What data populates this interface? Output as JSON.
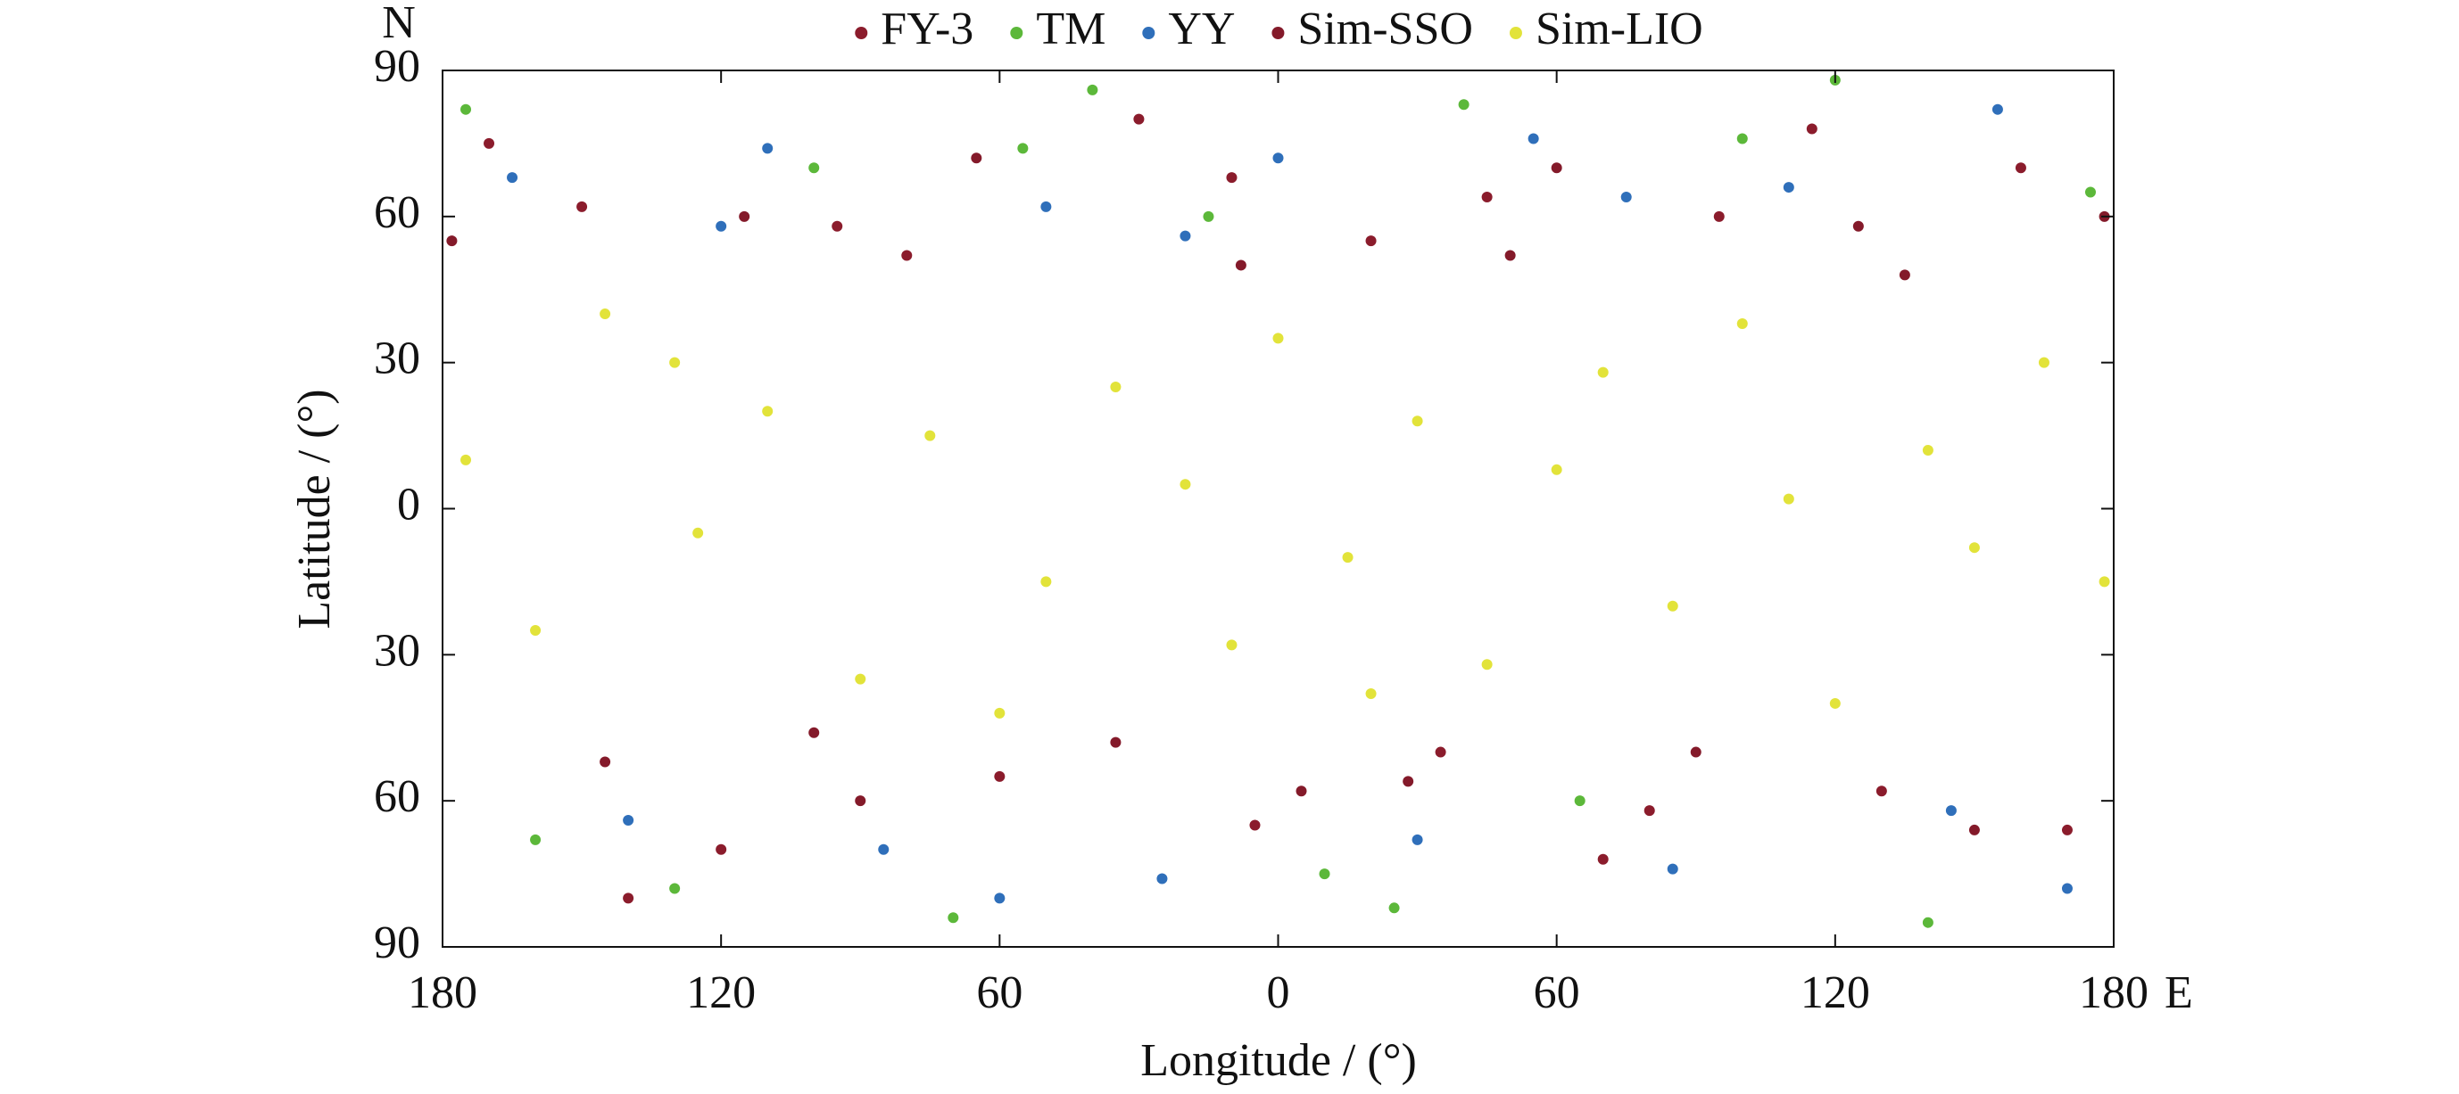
{
  "chart_data": {
    "type": "scatter",
    "xlabel": "Longitude / (°)",
    "ylabel": "Latitude / (°)",
    "annotations": [
      "N",
      "E"
    ],
    "xlim": [
      -180,
      180
    ],
    "xticks": [
      {
        "value": -180,
        "label": "180"
      },
      {
        "value": -120,
        "label": "120"
      },
      {
        "value": -60,
        "label": "60"
      },
      0,
      60,
      120,
      180
    ],
    "ylim": [
      -90,
      90
    ],
    "yticks": [
      {
        "value": -90,
        "label": "90"
      },
      {
        "value": -60,
        "label": "60"
      },
      {
        "value": -30,
        "label": "30"
      },
      0,
      30,
      60,
      90
    ],
    "legend": "top",
    "series": [
      {
        "name": "FY-3",
        "color": "#8b1c2c",
        "x": [
          -170,
          -150,
          -120,
          -95,
          -60,
          -30,
          -5,
          20,
          45,
          70,
          95,
          130,
          160,
          -140,
          -80,
          -10,
          35,
          80,
          115,
          170
        ],
        "values": [
          75,
          62,
          -70,
          58,
          -55,
          80,
          -65,
          55,
          64,
          -72,
          60,
          -58,
          70,
          -80,
          52,
          68,
          -50,
          -62,
          78,
          -66
        ]
      },
      {
        "name": "TM",
        "color": "#5cb83a",
        "x": [
          -175,
          -130,
          -100,
          -70,
          -40,
          -15,
          10,
          40,
          65,
          100,
          140,
          175,
          -160,
          -55,
          25,
          120
        ],
        "values": [
          82,
          -78,
          70,
          -84,
          86,
          60,
          -75,
          83,
          -60,
          76,
          -85,
          65,
          -68,
          74,
          -82,
          88
        ]
      },
      {
        "name": "YY",
        "color": "#2f6fba",
        "x": [
          -165,
          -140,
          -110,
          -85,
          -50,
          -25,
          0,
          30,
          55,
          85,
          110,
          145,
          170,
          -120,
          -20,
          75,
          155,
          -60
        ],
        "values": [
          68,
          -64,
          74,
          -70,
          62,
          -76,
          72,
          -68,
          76,
          -74,
          66,
          -62,
          -78,
          58,
          56,
          64,
          82,
          -80
        ]
      },
      {
        "name": "Sim-SSO",
        "color": "#841a2a",
        "x": [
          -178,
          -145,
          -115,
          -90,
          -65,
          -35,
          -8,
          28,
          50,
          90,
          125,
          150,
          178,
          -100,
          5,
          60,
          135
        ],
        "values": [
          55,
          -52,
          60,
          -60,
          72,
          -48,
          50,
          -56,
          52,
          -50,
          58,
          -66,
          60,
          -46,
          -58,
          70,
          48
        ]
      },
      {
        "name": "Sim-LIO",
        "color": "#e2e33a",
        "x": [
          -175,
          -160,
          -130,
          -125,
          -110,
          -90,
          -75,
          -50,
          -35,
          -20,
          -10,
          0,
          15,
          30,
          45,
          60,
          70,
          85,
          100,
          120,
          140,
          150,
          165,
          178,
          -145,
          -60,
          20,
          110
        ],
        "values": [
          10,
          -25,
          30,
          -5,
          20,
          -35,
          15,
          -15,
          25,
          5,
          -28,
          35,
          -10,
          18,
          -32,
          8,
          28,
          -20,
          38,
          -40,
          12,
          -8,
          30,
          -15,
          40,
          -42,
          -38,
          2
        ]
      }
    ]
  }
}
